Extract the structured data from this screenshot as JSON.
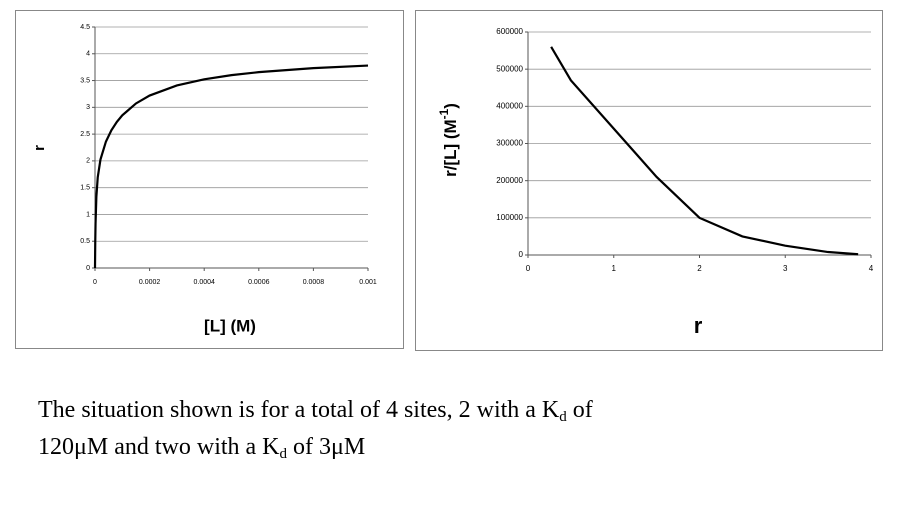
{
  "chart_data": [
    {
      "type": "line",
      "ylabel": "r",
      "xlabel": "[L] (M)",
      "color": "#000000",
      "x": [
        0,
        1e-06,
        2e-06,
        5e-06,
        1e-05,
        2e-05,
        4e-05,
        6e-05,
        8e-05,
        0.0001,
        0.00015,
        0.0002,
        0.0003,
        0.0004,
        0.0005,
        0.0006,
        0.0008,
        0.001
      ],
      "values": [
        0,
        0.517,
        0.833,
        1.33,
        1.692,
        2.025,
        2.36,
        2.571,
        2.728,
        2.851,
        3.072,
        3.22,
        3.409,
        3.523,
        3.601,
        3.657,
        3.732,
        3.78
      ],
      "xlim": [
        0,
        0.001
      ],
      "xticks": [
        0,
        0.0002,
        0.0004,
        0.0006,
        0.0008,
        0.001
      ],
      "ylim": [
        0,
        4.5
      ],
      "yticks": [
        0,
        0.5,
        1,
        1.5,
        2,
        2.5,
        3,
        3.5,
        4,
        4.5
      ],
      "grid": true
    },
    {
      "type": "line",
      "ylabel": [
        "r/[L] (M",
        "-1",
        ")"
      ],
      "xlabel": "r",
      "color": "#000000",
      "x": [
        0.27,
        0.5,
        1,
        1.5,
        2,
        2.5,
        3,
        3.5,
        3.85
      ],
      "values": [
        560000,
        470000,
        340000,
        210000,
        100000,
        50000,
        25000,
        8000,
        2000
      ],
      "xlim": [
        0,
        4
      ],
      "xticks": [
        0,
        1,
        2,
        3,
        4
      ],
      "ylim": [
        0,
        600000
      ],
      "yticks": [
        0,
        100000,
        200000,
        300000,
        400000,
        500000,
        600000
      ],
      "grid": true
    }
  ],
  "caption": {
    "lines": [
      [
        "The situation shown is for a total of 4 sites, 2 with a K",
        "d",
        " of"
      ],
      [
        "120μM and two with a K",
        "d",
        " of 3μM"
      ]
    ]
  }
}
